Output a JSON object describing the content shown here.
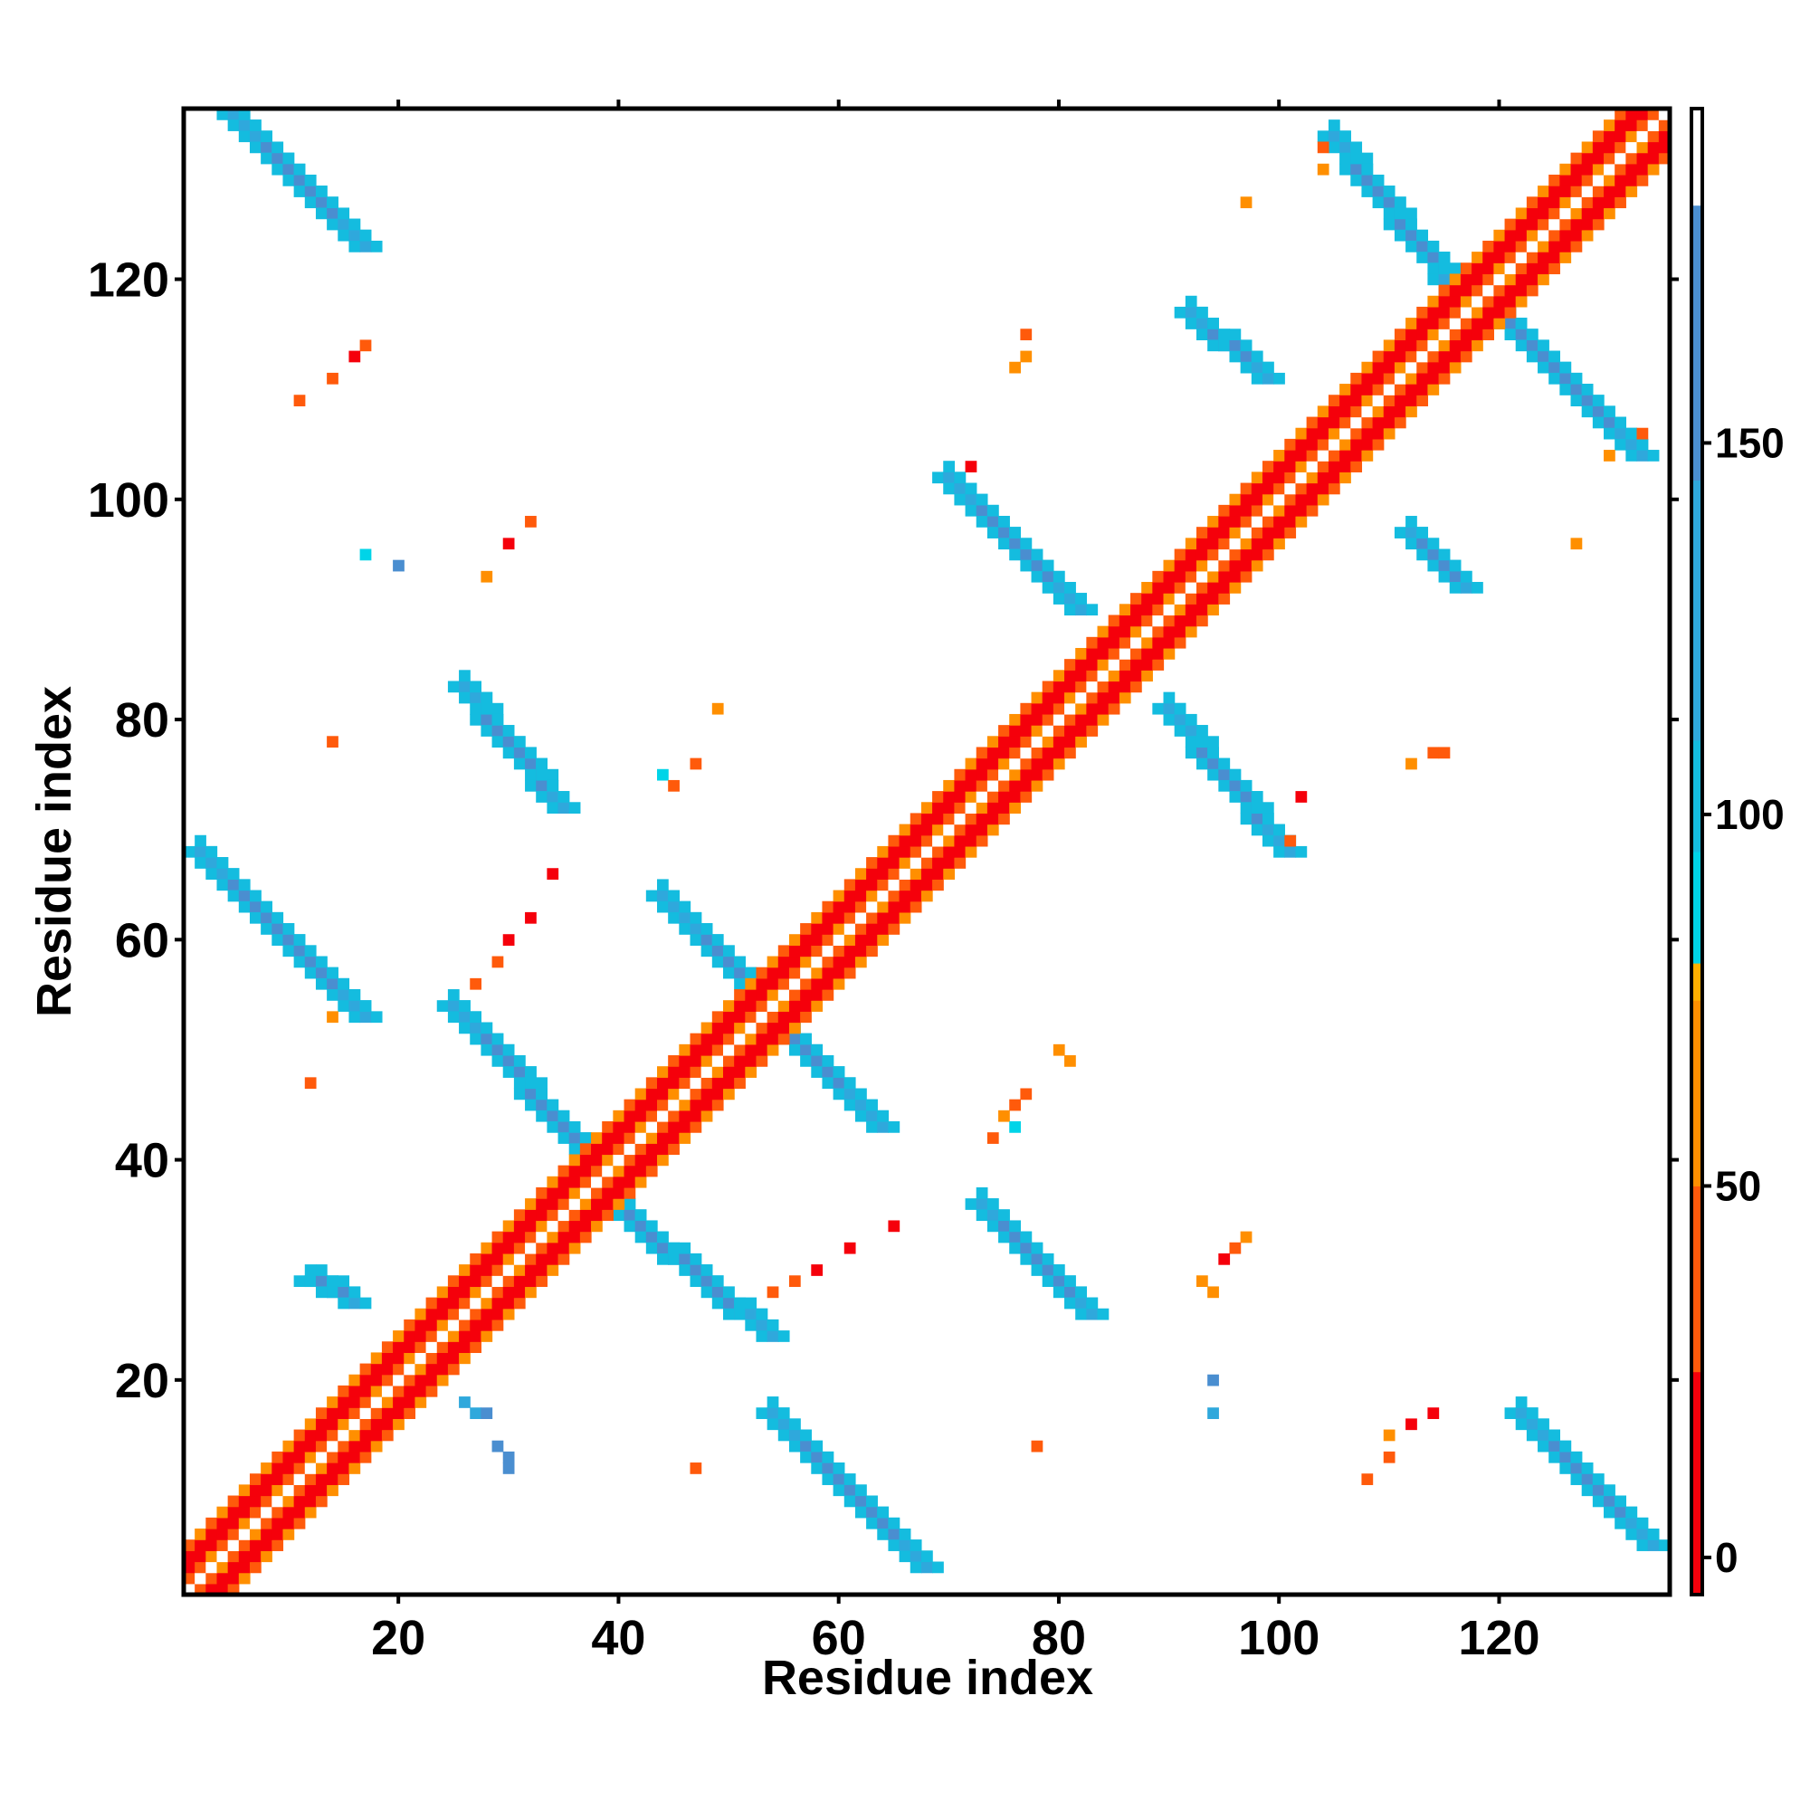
{
  "chart_data": {
    "type": "heatmap",
    "title": "",
    "xlabel": "Residue index",
    "ylabel": "Residue index",
    "xlim": [
      0.5,
      135.5
    ],
    "ylim": [
      0.5,
      135.5
    ],
    "x_ticks": [
      20,
      40,
      60,
      80,
      100,
      120
    ],
    "y_ticks": [
      20,
      40,
      60,
      80,
      100,
      120
    ],
    "x_tick_labels": [
      "20",
      "40",
      "60",
      "80",
      "100",
      "120"
    ],
    "y_tick_labels": [
      "20",
      "40",
      "60",
      "80",
      "100",
      "120"
    ],
    "grid": false,
    "colorbar": {
      "position": "right",
      "range": [
        -5,
        195
      ],
      "ticks": [
        0,
        50,
        100,
        150
      ],
      "tick_labels": [
        "0",
        "50",
        "100",
        "150"
      ],
      "segments": [
        {
          "from": -5,
          "to": 25,
          "color": "#f5000b"
        },
        {
          "from": 25,
          "to": 50,
          "color": "#ff5a0b"
        },
        {
          "from": 50,
          "to": 75,
          "color": "#ff8f00"
        },
        {
          "from": 75,
          "to": 80,
          "color": "#ffb000"
        },
        {
          "from": 80,
          "to": 95,
          "color": "#00d4e8"
        },
        {
          "from": 95,
          "to": 110,
          "color": "#14bcdf"
        },
        {
          "from": 110,
          "to": 145,
          "color": "#2fa8dc"
        },
        {
          "from": 145,
          "to": 182,
          "color": "#4a8ed0"
        },
        {
          "from": 182,
          "to": 195,
          "color": "#ffffff"
        }
      ]
    },
    "diagonal": {
      "start": 1,
      "end": 135
    },
    "bands": [
      {
        "x": [
          5,
          17
        ],
        "y": [
          135,
          123
        ],
        "value": 160
      },
      {
        "x": [
          2,
          17
        ],
        "y": [
          68,
          53
        ],
        "value": 160
      },
      {
        "x": [
          26,
          35
        ],
        "y": [
          83,
          72
        ],
        "value": 160
      },
      {
        "x": [
          25,
          39
        ],
        "y": [
          54,
          39
        ],
        "value": 160
      },
      {
        "x": [
          37,
          54
        ],
        "y": [
          38,
          24
        ],
        "value": 160
      },
      {
        "x": [
          54,
          68
        ],
        "y": [
          17,
          3
        ],
        "value": 160
      },
      {
        "x": [
          44,
          64
        ],
        "y": [
          64,
          43
        ],
        "value": 160
      },
      {
        "x": [
          73,
          83
        ],
        "y": [
          36,
          26
        ],
        "value": 160
      },
      {
        "x": [
          70,
          82
        ],
        "y": [
          102,
          90
        ],
        "value": 160
      },
      {
        "x": [
          90,
          101
        ],
        "y": [
          81,
          68
        ],
        "value": 160
      },
      {
        "x": [
          92,
          99
        ],
        "y": [
          117,
          111
        ],
        "value": 160
      },
      {
        "x": [
          105,
          117
        ],
        "y": [
          133,
          118
        ],
        "value": 160
      },
      {
        "x": [
          118,
          133
        ],
        "y": [
          119,
          104
        ],
        "value": 160
      },
      {
        "x": [
          112,
          117
        ],
        "y": [
          97,
          92
        ],
        "value": 160
      },
      {
        "x": [
          122,
          134
        ],
        "y": [
          17,
          5
        ],
        "value": 160
      },
      {
        "x": [
          12,
          16
        ],
        "y": [
          29,
          27
        ],
        "value": 160
      }
    ],
    "contacts": [
      {
        "x": 14,
        "y": 111,
        "value": 40
      },
      {
        "x": 16,
        "y": 113,
        "value": 10
      },
      {
        "x": 17,
        "y": 114,
        "value": 40
      },
      {
        "x": 11,
        "y": 109,
        "value": 40
      },
      {
        "x": 30,
        "y": 96,
        "value": 10
      },
      {
        "x": 32,
        "y": 98,
        "value": 40
      },
      {
        "x": 28,
        "y": 93,
        "value": 65
      },
      {
        "x": 17,
        "y": 95,
        "value": 90
      },
      {
        "x": 20,
        "y": 94,
        "value": 150
      },
      {
        "x": 14,
        "y": 78,
        "value": 40
      },
      {
        "x": 49,
        "y": 81,
        "value": 65
      },
      {
        "x": 47,
        "y": 76,
        "value": 40
      },
      {
        "x": 44,
        "y": 75,
        "value": 90
      },
      {
        "x": 45,
        "y": 74,
        "value": 40
      },
      {
        "x": 34,
        "y": 66,
        "value": 10
      },
      {
        "x": 32,
        "y": 62,
        "value": 10
      },
      {
        "x": 30,
        "y": 60,
        "value": 10
      },
      {
        "x": 29,
        "y": 58,
        "value": 40
      },
      {
        "x": 27,
        "y": 56,
        "value": 40
      },
      {
        "x": 14,
        "y": 53,
        "value": 65
      },
      {
        "x": 12,
        "y": 47,
        "value": 40
      },
      {
        "x": 77,
        "y": 115,
        "value": 40
      },
      {
        "x": 77,
        "y": 113,
        "value": 65
      },
      {
        "x": 76,
        "y": 112,
        "value": 65
      },
      {
        "x": 72,
        "y": 103,
        "value": 10
      },
      {
        "x": 97,
        "y": 127,
        "value": 65
      },
      {
        "x": 127,
        "y": 96,
        "value": 65
      },
      {
        "x": 114,
        "y": 77,
        "value": 40
      },
      {
        "x": 115,
        "y": 77,
        "value": 40
      },
      {
        "x": 112,
        "y": 76,
        "value": 65
      },
      {
        "x": 102,
        "y": 73,
        "value": 10
      },
      {
        "x": 101,
        "y": 69,
        "value": 40
      },
      {
        "x": 80,
        "y": 50,
        "value": 65
      },
      {
        "x": 81,
        "y": 49,
        "value": 65
      },
      {
        "x": 77,
        "y": 46,
        "value": 40
      },
      {
        "x": 76,
        "y": 45,
        "value": 40
      },
      {
        "x": 75,
        "y": 44,
        "value": 65
      },
      {
        "x": 76,
        "y": 43,
        "value": 90
      },
      {
        "x": 74,
        "y": 42,
        "value": 40
      },
      {
        "x": 65,
        "y": 34,
        "value": 10
      },
      {
        "x": 61,
        "y": 32,
        "value": 10
      },
      {
        "x": 58,
        "y": 30,
        "value": 10
      },
      {
        "x": 56,
        "y": 29,
        "value": 40
      },
      {
        "x": 54,
        "y": 28,
        "value": 40
      },
      {
        "x": 97,
        "y": 33,
        "value": 65
      },
      {
        "x": 96,
        "y": 32,
        "value": 40
      },
      {
        "x": 95,
        "y": 31,
        "value": 10
      },
      {
        "x": 93,
        "y": 29,
        "value": 65
      },
      {
        "x": 94,
        "y": 28,
        "value": 65
      },
      {
        "x": 94,
        "y": 20,
        "value": 150
      },
      {
        "x": 94,
        "y": 17,
        "value": 120
      },
      {
        "x": 78,
        "y": 14,
        "value": 40
      },
      {
        "x": 47,
        "y": 12,
        "value": 40
      },
      {
        "x": 114,
        "y": 17,
        "value": 10
      },
      {
        "x": 112,
        "y": 16,
        "value": 10
      },
      {
        "x": 110,
        "y": 15,
        "value": 65
      },
      {
        "x": 110,
        "y": 13,
        "value": 40
      },
      {
        "x": 108,
        "y": 11,
        "value": 40
      },
      {
        "x": 130,
        "y": 104,
        "value": 65
      },
      {
        "x": 133,
        "y": 106,
        "value": 40
      },
      {
        "x": 104,
        "y": 132,
        "value": 40
      },
      {
        "x": 104,
        "y": 130,
        "value": 65
      },
      {
        "x": 27,
        "y": 17,
        "value": 120
      },
      {
        "x": 28,
        "y": 17,
        "value": 150
      },
      {
        "x": 29,
        "y": 14,
        "value": 150
      },
      {
        "x": 30,
        "y": 13,
        "value": 150
      },
      {
        "x": 30,
        "y": 12,
        "value": 150
      },
      {
        "x": 26,
        "y": 18,
        "value": 120
      }
    ]
  }
}
